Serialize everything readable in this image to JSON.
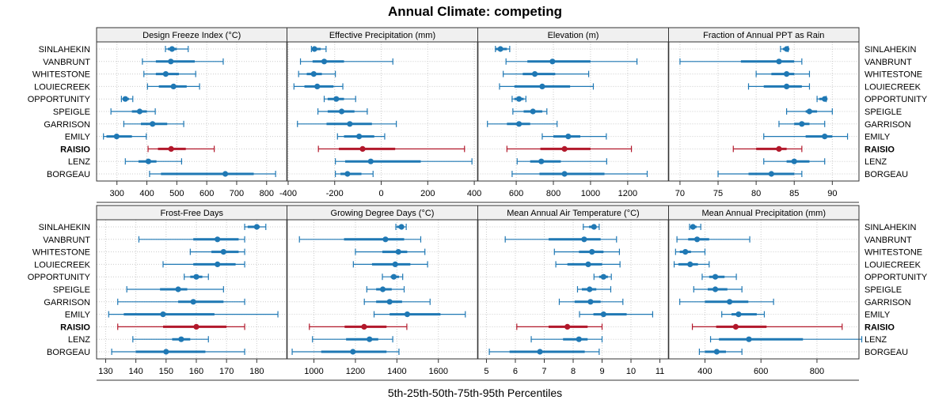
{
  "chart_data": {
    "type": "dotplot-percentile-intervals",
    "title": "Annual Climate: competing",
    "xlabel": "5th-25th-50th-75th-95th Percentiles",
    "highlight_site": "RAISIO",
    "colors": {
      "normal": "#1f78b4",
      "highlight": "#b2182b"
    },
    "sites": [
      "SINLAHEKIN",
      "VANBRUNT",
      "WHITESTONE",
      "LOUIECREEK",
      "OPPORTUNITY",
      "SPEIGLE",
      "GARRISON",
      "EMILY",
      "RAISIO",
      "LENZ",
      "BORGEAU"
    ],
    "grid": true,
    "panels": [
      {
        "name": "Design Freeze Index (°C)",
        "xlim": [
          232,
          868
        ],
        "ticks": [
          300,
          400,
          500,
          600,
          700,
          800
        ],
        "values": [
          [
            462,
            470,
            484,
            500,
            538
          ],
          [
            385,
            430,
            480,
            560,
            655
          ],
          [
            390,
            430,
            463,
            507,
            563
          ],
          [
            402,
            440,
            489,
            533,
            576
          ],
          [
            315,
            320,
            328,
            340,
            353
          ],
          [
            280,
            350,
            376,
            400,
            428
          ],
          [
            323,
            380,
            419,
            468,
            523
          ],
          [
            255,
            265,
            299,
            350,
            398
          ],
          [
            404,
            437,
            481,
            530,
            625
          ],
          [
            328,
            372,
            405,
            432,
            516
          ],
          [
            409,
            447,
            662,
            757,
            830
          ]
        ]
      },
      {
        "name": "Effective Precipitation (mm)",
        "xlim": [
          -405,
          415
        ],
        "ticks": [
          -400,
          -200,
          0,
          200,
          400
        ],
        "values": [
          [
            -300,
            -300,
            -287,
            -260,
            -237
          ],
          [
            -347,
            -295,
            -245,
            -160,
            50
          ],
          [
            -355,
            -320,
            -290,
            -255,
            -197
          ],
          [
            -375,
            -330,
            -275,
            -205,
            -165
          ],
          [
            -245,
            -230,
            -193,
            -160,
            -110
          ],
          [
            -272,
            -230,
            -170,
            -115,
            -60
          ],
          [
            -360,
            -235,
            -135,
            -40,
            65
          ],
          [
            -188,
            -160,
            -95,
            -30,
            15
          ],
          [
            -270,
            -182,
            -80,
            60,
            358
          ],
          [
            -197,
            -155,
            -45,
            170,
            390
          ],
          [
            -197,
            -175,
            -145,
            -85,
            -35
          ]
        ]
      },
      {
        "name": "Elevation (m)",
        "xlim": [
          393,
          1420
        ],
        "ticks": [
          600,
          800,
          1000,
          1200
        ],
        "values": [
          [
            488,
            490,
            515,
            550,
            565
          ],
          [
            545,
            660,
            795,
            1000,
            1250
          ],
          [
            530,
            635,
            700,
            810,
            990
          ],
          [
            510,
            590,
            740,
            890,
            1015
          ],
          [
            578,
            590,
            615,
            640,
            652
          ],
          [
            582,
            640,
            690,
            740,
            765
          ],
          [
            445,
            550,
            615,
            675,
            820
          ],
          [
            740,
            800,
            880,
            945,
            1085
          ],
          [
            550,
            730,
            860,
            1000,
            1220
          ],
          [
            605,
            675,
            735,
            840,
            1087
          ],
          [
            578,
            725,
            860,
            1075,
            1305
          ]
        ]
      },
      {
        "name": "Fraction of Annual PPT as Rain",
        "xlim": [
          68.5,
          93.5
        ],
        "ticks": [
          70,
          75,
          80,
          85,
          90
        ],
        "values": [
          [
            83.2,
            83.5,
            84,
            84.2,
            84.2
          ],
          [
            70,
            78,
            83,
            85,
            86
          ],
          [
            80,
            82,
            84,
            85,
            87
          ],
          [
            79,
            81,
            84,
            86,
            87
          ],
          [
            88,
            88.3,
            89,
            89.1,
            89.2
          ],
          [
            84,
            86.5,
            87,
            88,
            90
          ],
          [
            83,
            85,
            86,
            87,
            89
          ],
          [
            81,
            86.5,
            89,
            90,
            92
          ],
          [
            77,
            80,
            83,
            84,
            86
          ],
          [
            81,
            84,
            85,
            87,
            89
          ],
          [
            75,
            79,
            82,
            85,
            86
          ]
        ]
      }
    ],
    "panels_bottom": [
      {
        "name": "Frost-Free Days",
        "xlim": [
          127,
          190
        ],
        "ticks": [
          130,
          140,
          150,
          160,
          170,
          180
        ],
        "values": [
          [
            176,
            177,
            180,
            181,
            183
          ],
          [
            141,
            159,
            167,
            174,
            176
          ],
          [
            158,
            165,
            169,
            174,
            176
          ],
          [
            149,
            159,
            167,
            173,
            176
          ],
          [
            156,
            158,
            160,
            162,
            164
          ],
          [
            137,
            148,
            154,
            157,
            169
          ],
          [
            134,
            154,
            159,
            169,
            176
          ],
          [
            131,
            136,
            149,
            166,
            187
          ],
          [
            134,
            149,
            160,
            170,
            176
          ],
          [
            139,
            152,
            155,
            158,
            164
          ],
          [
            132,
            140,
            150,
            163,
            176
          ]
        ]
      },
      {
        "name": "Growing Degree Days (°C)",
        "xlim": [
          870,
          1790
        ],
        "ticks": [
          1000,
          1200,
          1400,
          1600
        ],
        "values": [
          [
            1395,
            1400,
            1422,
            1432,
            1445
          ],
          [
            930,
            1145,
            1345,
            1435,
            1515
          ],
          [
            1200,
            1330,
            1407,
            1450,
            1535
          ],
          [
            1190,
            1280,
            1392,
            1465,
            1548
          ],
          [
            1330,
            1370,
            1385,
            1410,
            1428
          ],
          [
            1255,
            1300,
            1332,
            1375,
            1435
          ],
          [
            1243,
            1300,
            1365,
            1425,
            1560
          ],
          [
            1290,
            1365,
            1450,
            1610,
            1730
          ],
          [
            978,
            1148,
            1242,
            1350,
            1448
          ],
          [
            993,
            1155,
            1268,
            1310,
            1380
          ],
          [
            895,
            1035,
            1188,
            1350,
            1410
          ]
        ]
      },
      {
        "name": "Mean Annual Air Temperature (°C)",
        "xlim": [
          4.7,
          11.3
        ],
        "ticks": [
          5,
          6,
          7,
          8,
          9,
          10,
          11
        ],
        "values": [
          [
            8.35,
            8.55,
            8.72,
            8.8,
            8.9
          ],
          [
            5.65,
            7.15,
            8.38,
            8.95,
            9.5
          ],
          [
            7.35,
            8.2,
            8.65,
            9.05,
            9.6
          ],
          [
            7.4,
            7.8,
            8.52,
            9.0,
            9.62
          ],
          [
            8.72,
            8.9,
            9.05,
            9.2,
            9.32
          ],
          [
            8.15,
            8.3,
            8.57,
            8.8,
            9.3
          ],
          [
            7.52,
            8.05,
            8.6,
            8.95,
            9.72
          ],
          [
            8.22,
            8.7,
            9.05,
            9.85,
            10.75
          ],
          [
            6.05,
            7.15,
            7.8,
            8.5,
            9.0
          ],
          [
            6.55,
            7.65,
            8.2,
            8.5,
            9.0
          ],
          [
            5.1,
            5.8,
            6.85,
            8.4,
            8.9
          ]
        ]
      },
      {
        "name": "Mean Annual Precipitation (mm)",
        "xlim": [
          270,
          950
        ],
        "ticks": [
          400,
          600,
          800
        ],
        "values": [
          [
            345,
            350,
            357,
            370,
            385
          ],
          [
            300,
            340,
            372,
            415,
            560
          ],
          [
            295,
            310,
            330,
            350,
            400
          ],
          [
            290,
            305,
            347,
            375,
            415
          ],
          [
            390,
            415,
            437,
            470,
            512
          ],
          [
            360,
            410,
            437,
            480,
            532
          ],
          [
            310,
            400,
            488,
            555,
            645
          ],
          [
            460,
            495,
            520,
            585,
            612
          ],
          [
            355,
            440,
            510,
            620,
            890
          ],
          [
            420,
            450,
            557,
            750,
            960
          ],
          [
            380,
            400,
            442,
            475,
            532
          ]
        ]
      }
    ]
  }
}
